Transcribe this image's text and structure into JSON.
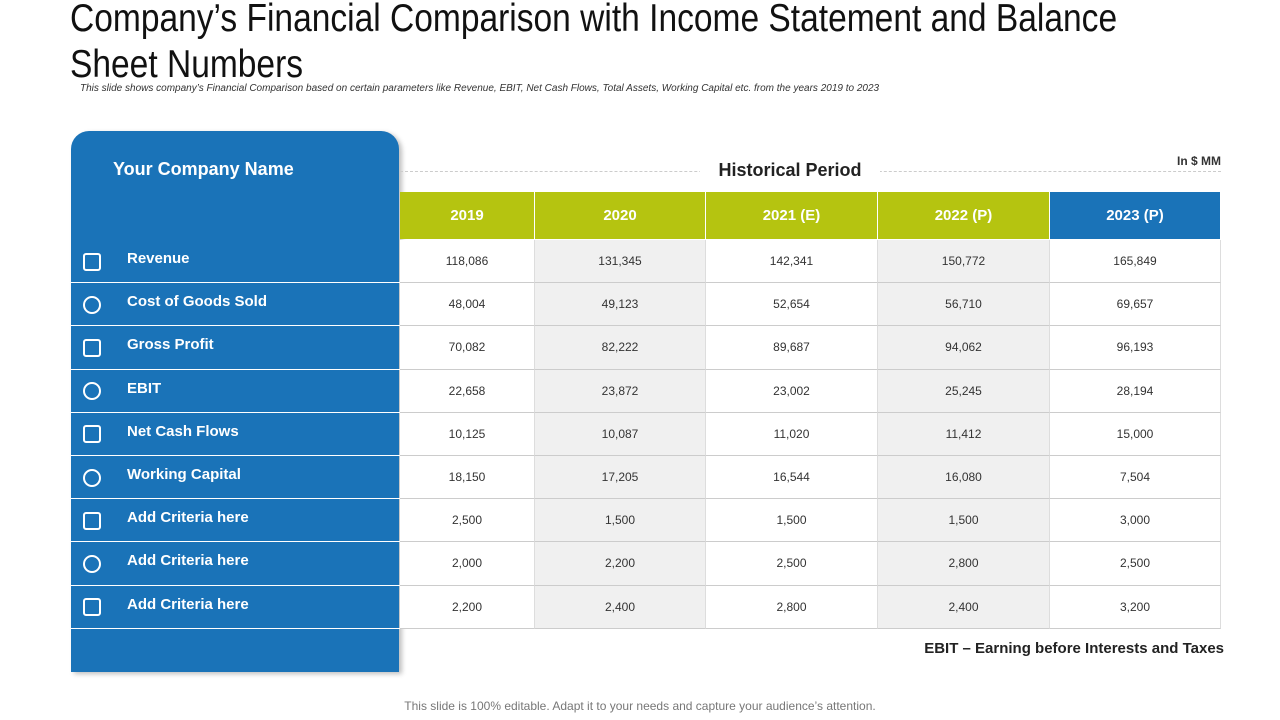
{
  "header": {
    "title": "Company’s Financial Comparison with Income Statement and Balance Sheet Numbers",
    "subtitle": "This slide shows company’s Financial Comparison based on certain parameters like Revenue, EBIT, Net Cash Flows, Total Assets, Working Capital etc. from the years 2019 to 2023"
  },
  "table": {
    "company": "Your Company Name",
    "unit": "In $ MM",
    "period": "Historical Period",
    "columns": [
      "2019",
      "2020",
      "2021 (E)",
      "2022 (P)",
      "2023 (P)"
    ],
    "rows": [
      [
        "Revenue",
        "118,086",
        "131,345",
        "142,341",
        "150,772",
        "165,849"
      ],
      [
        "Cost of Goods Sold",
        "48,004",
        "49,123",
        "52,654",
        "56,710",
        "69,657"
      ],
      [
        "Gross Profit",
        "70,082",
        "82,222",
        "89,687",
        "94,062",
        "96,193"
      ],
      [
        "EBIT",
        "22,658",
        "23,872",
        "23,002",
        "25,245",
        "28,194"
      ],
      [
        "Net Cash Flows",
        "10,125",
        "10,087",
        "11,020",
        "11,412",
        "15,000"
      ],
      [
        "Working Capital",
        "18,150",
        "17,205",
        "16,544",
        "16,080",
        "7,504"
      ],
      [
        "Add  Criteria here",
        "2,500",
        "1,500",
        "1,500",
        "1,500",
        "3,000"
      ],
      [
        "Add  Criteria here",
        "2,000",
        "2,200",
        "2,500",
        "2,800",
        "2,500"
      ],
      [
        "Add  Criteria here",
        "2,200",
        "2,400",
        "2,800",
        "2,400",
        "3,200"
      ]
    ]
  },
  "footnote": "EBIT – Earning before Interests and Taxes",
  "footer": "This slide is 100% editable. Adapt it to your needs and capture your audience’s attention."
}
